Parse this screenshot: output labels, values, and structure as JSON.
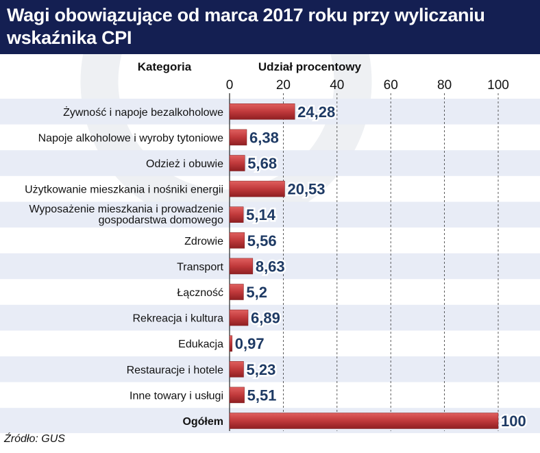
{
  "title": "Wagi obowiązujące od marca 2017 roku przy wyliczaniu\nwskaźnika CPI",
  "source": "Źródło: GUS",
  "colors": {
    "header": "#141f52",
    "bar": "#c0393b",
    "band": "#e8ecf6",
    "value_text": "#1e3a64"
  },
  "chart_data": {
    "type": "bar",
    "orientation": "horizontal",
    "category_header": "Kategoria",
    "value_header": "Udział procentowy",
    "xlim": [
      0,
      110
    ],
    "xticks": [
      0,
      20,
      40,
      60,
      80,
      100
    ],
    "gridlines": "vertical, dashed",
    "categories": [
      [
        "Żywność i napoje bezalkoholowe"
      ],
      [
        "Napoje alkoholowe i wyroby tytoniowe"
      ],
      [
        "Odzież i obuwie"
      ],
      [
        "Użytkowanie mieszkania i nośniki energii"
      ],
      [
        "Wyposażenie mieszkania i prowadzenie",
        "gospodarstwa domowego"
      ],
      [
        "Zdrowie"
      ],
      [
        "Transport"
      ],
      [
        "Łączność"
      ],
      [
        "Rekreacja i kultura"
      ],
      [
        "Edukacja"
      ],
      [
        "Restauracje i hotele"
      ],
      [
        "Inne towary i usługi"
      ],
      [
        "Ogółem"
      ]
    ],
    "values": [
      24.28,
      6.38,
      5.68,
      20.53,
      5.14,
      5.56,
      8.63,
      5.2,
      6.89,
      0.97,
      5.23,
      5.51,
      100
    ],
    "value_labels": [
      "24,28",
      "6,38",
      "5,68",
      "20,53",
      "5,14",
      "5,56",
      "8,63",
      "5,2",
      "6,89",
      "0,97",
      "5,23",
      "5,51",
      "100"
    ],
    "bold_categories": [
      "Ogółem"
    ]
  }
}
